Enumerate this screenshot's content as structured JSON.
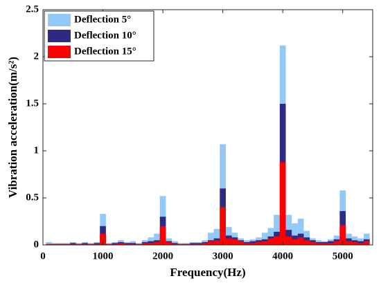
{
  "chart_data": {
    "type": "bar",
    "mode": "overlay",
    "xlabel": "Frequency(Hz)",
    "ylabel": "Vibration acceleration(m/s²)",
    "x": [
      100,
      200,
      300,
      400,
      500,
      600,
      700,
      800,
      900,
      1000,
      1100,
      1200,
      1300,
      1400,
      1500,
      1600,
      1700,
      1800,
      1900,
      2000,
      2100,
      2200,
      2300,
      2400,
      2500,
      2600,
      2700,
      2800,
      2900,
      3000,
      3100,
      3200,
      3300,
      3400,
      3500,
      3600,
      3700,
      3800,
      3900,
      4000,
      4100,
      4200,
      4300,
      4400,
      4500,
      4600,
      4700,
      4800,
      4900,
      5000,
      5100,
      5200,
      5300,
      5400
    ],
    "bar_width": 100,
    "series": [
      {
        "name": "Deflection 5°",
        "color": "#92c9f6",
        "values": [
          0.03,
          0.02,
          0.02,
          0.02,
          0.03,
          0.02,
          0.03,
          0.02,
          0.03,
          0.33,
          0.02,
          0.03,
          0.05,
          0.03,
          0.04,
          0.02,
          0.05,
          0.08,
          0.12,
          0.52,
          0.07,
          0.04,
          0.02,
          0.02,
          0.03,
          0.03,
          0.05,
          0.13,
          0.17,
          1.07,
          0.19,
          0.13,
          0.07,
          0.05,
          0.06,
          0.08,
          0.13,
          0.18,
          0.32,
          2.12,
          0.32,
          0.23,
          0.28,
          0.15,
          0.07,
          0.05,
          0.04,
          0.06,
          0.1,
          0.58,
          0.12,
          0.09,
          0.07,
          0.12
        ]
      },
      {
        "name": "Deflection 10°",
        "color": "#2e2a84",
        "values": [
          0.01,
          0.01,
          0.01,
          0.01,
          0.02,
          0.01,
          0.02,
          0.01,
          0.02,
          0.2,
          0.01,
          0.02,
          0.03,
          0.02,
          0.02,
          0.01,
          0.03,
          0.04,
          0.05,
          0.3,
          0.04,
          0.02,
          0.01,
          0.01,
          0.02,
          0.02,
          0.03,
          0.05,
          0.07,
          0.6,
          0.1,
          0.08,
          0.05,
          0.03,
          0.04,
          0.05,
          0.06,
          0.09,
          0.14,
          1.5,
          0.16,
          0.1,
          0.12,
          0.08,
          0.05,
          0.03,
          0.03,
          0.04,
          0.06,
          0.36,
          0.07,
          0.05,
          0.04,
          0.06
        ]
      },
      {
        "name": "Deflection 15°",
        "color": "#ff0000",
        "values": [
          0.01,
          0.01,
          0.01,
          0.01,
          0.01,
          0.01,
          0.01,
          0.01,
          0.01,
          0.12,
          0.01,
          0.01,
          0.02,
          0.01,
          0.01,
          0.01,
          0.02,
          0.02,
          0.03,
          0.2,
          0.03,
          0.01,
          0.01,
          0.01,
          0.01,
          0.01,
          0.02,
          0.04,
          0.05,
          0.4,
          0.07,
          0.06,
          0.04,
          0.02,
          0.02,
          0.03,
          0.04,
          0.07,
          0.09,
          0.88,
          0.09,
          0.06,
          0.08,
          0.05,
          0.03,
          0.02,
          0.02,
          0.02,
          0.04,
          0.21,
          0.04,
          0.03,
          0.02,
          0.04
        ]
      }
    ],
    "xlim": [
      0,
      5500
    ],
    "xticks": [
      0,
      1000,
      2000,
      3000,
      4000,
      5000
    ],
    "ylim": [
      0,
      2.5
    ],
    "yticks": [
      0,
      0.5,
      1,
      1.5,
      2,
      2.5
    ],
    "grid": false,
    "legend": "upper left"
  }
}
